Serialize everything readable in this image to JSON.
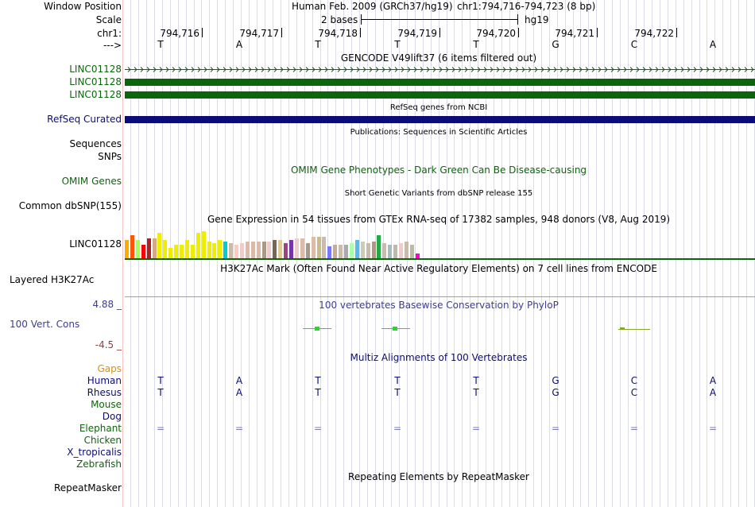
{
  "labels": {
    "window_position": "Window Position",
    "scale": "Scale",
    "chrom": "chr1:",
    "strand": "--->",
    "gencode1": "LINC01128",
    "gencode2": "LINC01128",
    "gencode3": "LINC01128",
    "refseq": "RefSeq Curated",
    "sequences": "Sequences",
    "snps": "SNPs",
    "omim": "OMIM Genes",
    "dbsnp": "Common dbSNP(155)",
    "gtex_gene": "LINC01128",
    "h3k27ac": "Layered H3K27Ac",
    "cons_max": "4.88 _",
    "cons_label": "100 Vert. Cons",
    "cons_min": "-4.5 _",
    "gaps": "Gaps",
    "human": "Human",
    "rhesus": "Rhesus",
    "mouse": "Mouse",
    "dog": "Dog",
    "elephant": "Elephant",
    "chicken": "Chicken",
    "x_tropicalis": "X_tropicalis",
    "zebrafish": "Zebrafish",
    "repeatmasker": "RepeatMasker"
  },
  "header": {
    "assembly": "Human Feb. 2009 (GRCh37/hg19)",
    "position": "chr1:794,716-794,723 (8 bp)",
    "scale_text": "2 bases",
    "scale_db": "hg19"
  },
  "ruler": {
    "positions": [
      "794,716",
      "794,717",
      "794,718",
      "794,719",
      "794,720",
      "794,721",
      "794,722"
    ]
  },
  "bases": [
    "T",
    "A",
    "T",
    "T",
    "T",
    "G",
    "C",
    "A"
  ],
  "rhesus_bases": [
    "T",
    "A",
    "T",
    "T",
    "T",
    "G",
    "C",
    "A"
  ],
  "elephant_marks": [
    "=",
    "=",
    "=",
    "=",
    "=",
    "=",
    "=",
    "="
  ],
  "titles": {
    "gencode": "GENCODE V49lift37 (6 items filtered out)",
    "refseq": "RefSeq genes from NCBI",
    "publications": "Publications: Sequences in Scientific Articles",
    "omim": "OMIM Gene Phenotypes - Dark Green Can Be Disease-causing",
    "dbsnp": "Short Genetic Variants from dbSNP release 155",
    "gtex": "Gene Expression in 54 tissues from GTEx RNA-seq of 17382 samples, 948 donors (V8, Aug 2019)",
    "h3k27ac": "H3K27Ac Mark (Often Found Near Active Regulatory Elements) on 7 cell lines from ENCODE",
    "phylop": "100 vertebrates Basewise Conservation by PhyloP",
    "multiz": "Multiz Alignments of 100 Vertebrates",
    "repeatmasker": "Repeating Elements by RepeatMasker"
  },
  "gtex_levels": [
    0.55,
    0.7,
    0.55,
    0.4,
    0.6,
    0.6,
    0.75,
    0.55,
    0.3,
    0.4,
    0.4,
    0.55,
    0.4,
    0.75,
    0.8,
    0.5,
    0.45,
    0.55,
    0.5,
    0.45,
    0.4,
    0.45,
    0.5,
    0.5,
    0.5,
    0.5,
    0.5,
    0.55,
    0.55,
    0.45,
    0.55,
    0.6,
    0.6,
    0.45,
    0.65,
    0.65,
    0.65,
    0.35,
    0.4,
    0.4,
    0.4,
    0.45,
    0.55,
    0.5,
    0.45,
    0.5,
    0.7,
    0.45,
    0.4,
    0.4,
    0.45,
    0.5,
    0.4,
    0.15
  ],
  "gtex_colors": [
    "#ffaa00",
    "#ff5500",
    "#aaff55",
    "#ff0000",
    "#aa2222",
    "#d4a78a",
    "#eeee00",
    "#eeee00",
    "#eeee00",
    "#eeee00",
    "#eeee00",
    "#eeee00",
    "#eeee00",
    "#eeee00",
    "#eeee00",
    "#eeee00",
    "#eeee00",
    "#eeee00",
    "#00cccc",
    "#ccbbaa",
    "#ffccbb",
    "#eecccc",
    "#ddbbaa",
    "#ddbbaa",
    "#ddbbaa",
    "#aa9988",
    "#eecccc",
    "#776655",
    "#ddcc99",
    "#994488",
    "#7733aa",
    "#eecccc",
    "#ddbbaa",
    "#aa9988",
    "#ddbbaa",
    "#ccbb88",
    "#ccbbaa",
    "#7777ff",
    "#ccaa99",
    "#ccbbaa",
    "#aaaaaa",
    "#aaffaa",
    "#55bbee",
    "#ccccbb",
    "#ccbbaa",
    "#aa9988",
    "#22aa44",
    "#ccbbaa",
    "#aabbbb",
    "#bbbbaa",
    "#eecccc",
    "#ccbbaa",
    "#bbbbaa",
    "#ff00cc"
  ],
  "colors": {
    "gencode": "#0c650c",
    "refseq": "#0c0c78",
    "omim": "#0c650c",
    "cons_pos": "#3c3c96",
    "cons_neg": "#963c3c",
    "gaps": "#e09000",
    "primate": "#0c0c78",
    "mammal": "#0c650c",
    "phylop_mark": "#22dd22"
  }
}
